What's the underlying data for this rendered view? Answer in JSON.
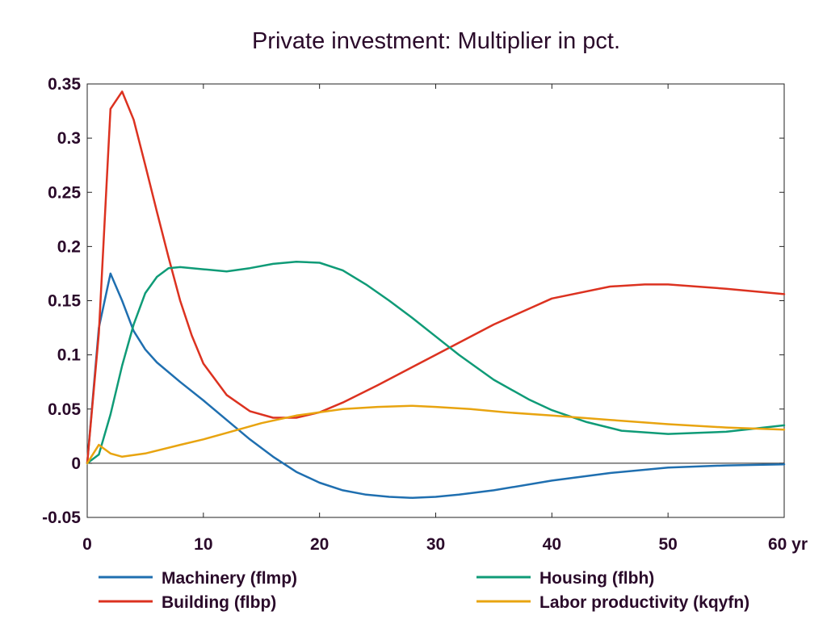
{
  "chart_data": {
    "type": "line",
    "title": "Private investment: Multiplier in pct.",
    "xlabel": "",
    "ylabel": "",
    "x_unit": "yr",
    "xlim": [
      0,
      60
    ],
    "ylim": [
      -0.05,
      0.35
    ],
    "x_ticks": [
      0,
      10,
      20,
      30,
      40,
      50,
      60
    ],
    "x_tick_labels": [
      "0",
      "10",
      "20",
      "30",
      "40",
      "50",
      "60 yr"
    ],
    "y_ticks": [
      -0.05,
      0,
      0.05,
      0.1,
      0.15,
      0.2,
      0.25,
      0.3,
      0.35
    ],
    "y_tick_labels": [
      "-0.05",
      "0",
      "0.05",
      "0.1",
      "0.15",
      "0.2",
      "0.25",
      "0.3",
      "0.35"
    ],
    "grid": false,
    "zero_line": true,
    "legend_position": "bottom",
    "series": [
      {
        "name": "Machinery (flmp)",
        "color": "#1f6fb0",
        "points": [
          [
            0,
            0
          ],
          [
            1,
            0.125
          ],
          [
            2,
            0.175
          ],
          [
            3,
            0.15
          ],
          [
            4,
            0.122
          ],
          [
            5,
            0.105
          ],
          [
            6,
            0.093
          ],
          [
            8,
            0.075
          ],
          [
            10,
            0.058
          ],
          [
            12,
            0.04
          ],
          [
            14,
            0.022
          ],
          [
            16,
            0.006
          ],
          [
            18,
            -0.008
          ],
          [
            20,
            -0.018
          ],
          [
            22,
            -0.025
          ],
          [
            24,
            -0.029
          ],
          [
            26,
            -0.031
          ],
          [
            28,
            -0.032
          ],
          [
            30,
            -0.031
          ],
          [
            32,
            -0.029
          ],
          [
            35,
            -0.025
          ],
          [
            40,
            -0.016
          ],
          [
            45,
            -0.009
          ],
          [
            50,
            -0.004
          ],
          [
            55,
            -0.002
          ],
          [
            60,
            -0.001
          ]
        ]
      },
      {
        "name": "Building (flbp)",
        "color": "#dc3220",
        "points": [
          [
            0,
            0
          ],
          [
            1,
            0.12
          ],
          [
            2,
            0.327
          ],
          [
            3,
            0.343
          ],
          [
            4,
            0.317
          ],
          [
            5,
            0.275
          ],
          [
            6,
            0.232
          ],
          [
            7,
            0.19
          ],
          [
            8,
            0.15
          ],
          [
            9,
            0.118
          ],
          [
            10,
            0.092
          ],
          [
            12,
            0.063
          ],
          [
            14,
            0.048
          ],
          [
            16,
            0.042
          ],
          [
            18,
            0.042
          ],
          [
            20,
            0.047
          ],
          [
            22,
            0.056
          ],
          [
            25,
            0.072
          ],
          [
            30,
            0.1
          ],
          [
            35,
            0.128
          ],
          [
            40,
            0.152
          ],
          [
            45,
            0.163
          ],
          [
            48,
            0.165
          ],
          [
            50,
            0.165
          ],
          [
            55,
            0.161
          ],
          [
            60,
            0.156
          ]
        ]
      },
      {
        "name": "Housing (flbh)",
        "color": "#0f9b77",
        "points": [
          [
            0,
            0
          ],
          [
            1,
            0.008
          ],
          [
            2,
            0.045
          ],
          [
            3,
            0.09
          ],
          [
            4,
            0.128
          ],
          [
            5,
            0.157
          ],
          [
            6,
            0.172
          ],
          [
            7,
            0.18
          ],
          [
            8,
            0.181
          ],
          [
            10,
            0.179
          ],
          [
            12,
            0.177
          ],
          [
            14,
            0.18
          ],
          [
            16,
            0.184
          ],
          [
            18,
            0.186
          ],
          [
            20,
            0.185
          ],
          [
            22,
            0.178
          ],
          [
            24,
            0.165
          ],
          [
            26,
            0.15
          ],
          [
            28,
            0.134
          ],
          [
            30,
            0.117
          ],
          [
            32,
            0.1
          ],
          [
            35,
            0.077
          ],
          [
            38,
            0.059
          ],
          [
            40,
            0.049
          ],
          [
            43,
            0.038
          ],
          [
            46,
            0.03
          ],
          [
            50,
            0.027
          ],
          [
            55,
            0.029
          ],
          [
            60,
            0.035
          ]
        ]
      },
      {
        "name": "Labor productivity (kqyfn)",
        "color": "#e8a410",
        "points": [
          [
            0,
            0
          ],
          [
            1,
            0.017
          ],
          [
            2,
            0.009
          ],
          [
            3,
            0.006
          ],
          [
            5,
            0.009
          ],
          [
            8,
            0.017
          ],
          [
            10,
            0.022
          ],
          [
            12,
            0.028
          ],
          [
            15,
            0.037
          ],
          [
            18,
            0.044
          ],
          [
            20,
            0.047
          ],
          [
            22,
            0.05
          ],
          [
            25,
            0.052
          ],
          [
            28,
            0.053
          ],
          [
            30,
            0.052
          ],
          [
            33,
            0.05
          ],
          [
            36,
            0.047
          ],
          [
            40,
            0.044
          ],
          [
            45,
            0.04
          ],
          [
            50,
            0.036
          ],
          [
            55,
            0.033
          ],
          [
            60,
            0.031
          ]
        ]
      }
    ]
  }
}
